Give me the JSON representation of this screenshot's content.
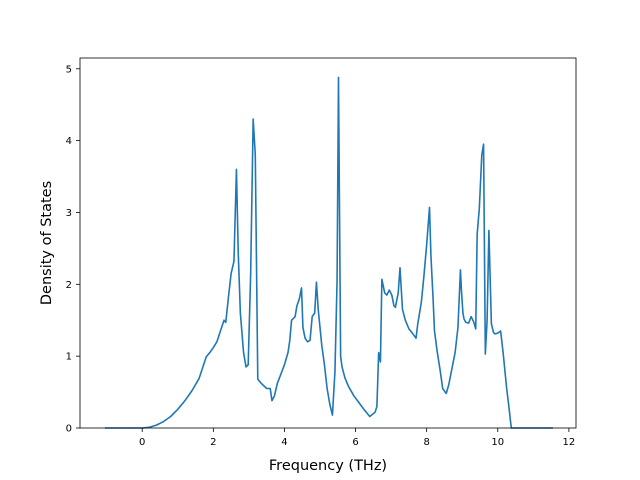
{
  "chart_data": {
    "type": "line",
    "title": "",
    "xlabel": "Frequency (THz)",
    "ylabel": "Density of States",
    "xlim": [
      -1.75,
      12.2
    ],
    "ylim": [
      0,
      5.15
    ],
    "xticks": [
      0,
      2,
      4,
      6,
      8,
      10,
      12
    ],
    "yticks": [
      0,
      1,
      2,
      3,
      4,
      5
    ],
    "xtick_labels": [
      "0",
      "2",
      "4",
      "6",
      "8",
      "10",
      "12"
    ],
    "ytick_labels": [
      "0",
      "1",
      "2",
      "3",
      "4",
      "5"
    ],
    "grid": false,
    "line_color": "#1f77b4",
    "series": [
      {
        "x": [
          -1.05,
          0.0,
          0.2,
          0.4,
          0.6,
          0.8,
          1.0,
          1.2,
          1.4,
          1.6,
          1.8,
          1.9,
          2.0,
          2.1,
          2.2,
          2.3,
          2.35,
          2.42,
          2.5,
          2.58,
          2.65,
          2.7,
          2.76,
          2.85,
          2.92,
          2.98,
          3.05,
          3.12,
          3.18,
          3.25,
          3.35,
          3.5,
          3.6,
          3.65,
          3.72,
          3.8,
          3.9,
          4.0,
          4.1,
          4.15,
          4.2,
          4.3,
          4.35,
          4.42,
          4.48,
          4.52,
          4.58,
          4.65,
          4.72,
          4.78,
          4.85,
          4.9,
          4.95,
          5.05,
          5.12,
          5.2,
          5.28,
          5.35,
          5.42,
          5.48,
          5.52,
          5.58,
          5.62,
          5.7,
          5.8,
          5.95,
          6.1,
          6.25,
          6.4,
          6.55,
          6.6,
          6.65,
          6.7,
          6.74,
          6.82,
          6.88,
          6.95,
          7.02,
          7.08,
          7.12,
          7.2,
          7.25,
          7.32,
          7.4,
          7.5,
          7.6,
          7.7,
          7.75,
          7.85,
          7.92,
          8.0,
          8.08,
          8.12,
          8.18,
          8.22,
          8.3,
          8.38,
          8.45,
          8.55,
          8.62,
          8.7,
          8.8,
          8.88,
          8.95,
          8.98,
          9.02,
          9.05,
          9.1,
          9.18,
          9.25,
          9.32,
          9.38,
          9.42,
          9.48,
          9.55,
          9.6,
          9.65,
          9.7,
          9.75,
          9.82,
          9.88,
          9.92,
          10.0,
          10.08,
          10.15,
          10.2,
          10.25,
          10.3,
          10.38,
          10.45,
          10.5,
          11.55
        ],
        "y": [
          0.0,
          0.0,
          0.01,
          0.04,
          0.09,
          0.16,
          0.26,
          0.38,
          0.52,
          0.69,
          0.99,
          1.05,
          1.12,
          1.2,
          1.35,
          1.5,
          1.47,
          1.8,
          2.15,
          2.32,
          3.6,
          2.45,
          1.6,
          1.05,
          0.85,
          0.88,
          2.15,
          4.3,
          3.8,
          0.68,
          0.62,
          0.55,
          0.55,
          0.38,
          0.45,
          0.62,
          0.75,
          0.88,
          1.05,
          1.22,
          1.5,
          1.55,
          1.7,
          1.8,
          1.95,
          1.4,
          1.25,
          1.2,
          1.22,
          1.55,
          1.6,
          2.03,
          1.65,
          1.15,
          0.9,
          0.55,
          0.32,
          0.18,
          0.78,
          2.05,
          4.88,
          1.0,
          0.85,
          0.7,
          0.58,
          0.45,
          0.35,
          0.25,
          0.16,
          0.22,
          0.3,
          1.05,
          0.92,
          2.07,
          1.88,
          1.85,
          1.92,
          1.85,
          1.7,
          1.68,
          1.88,
          2.23,
          1.65,
          1.5,
          1.38,
          1.32,
          1.25,
          1.45,
          1.75,
          2.1,
          2.55,
          3.07,
          2.4,
          1.8,
          1.35,
          1.05,
          0.8,
          0.55,
          0.48,
          0.6,
          0.8,
          1.05,
          1.4,
          2.2,
          1.9,
          1.6,
          1.52,
          1.47,
          1.46,
          1.55,
          1.48,
          1.38,
          2.7,
          3.05,
          3.8,
          3.95,
          1.03,
          1.5,
          2.75,
          1.45,
          1.33,
          1.31,
          1.32,
          1.35,
          1.05,
          0.8,
          0.55,
          0.35,
          0.0,
          0.0,
          0.0,
          0.0
        ]
      }
    ]
  }
}
